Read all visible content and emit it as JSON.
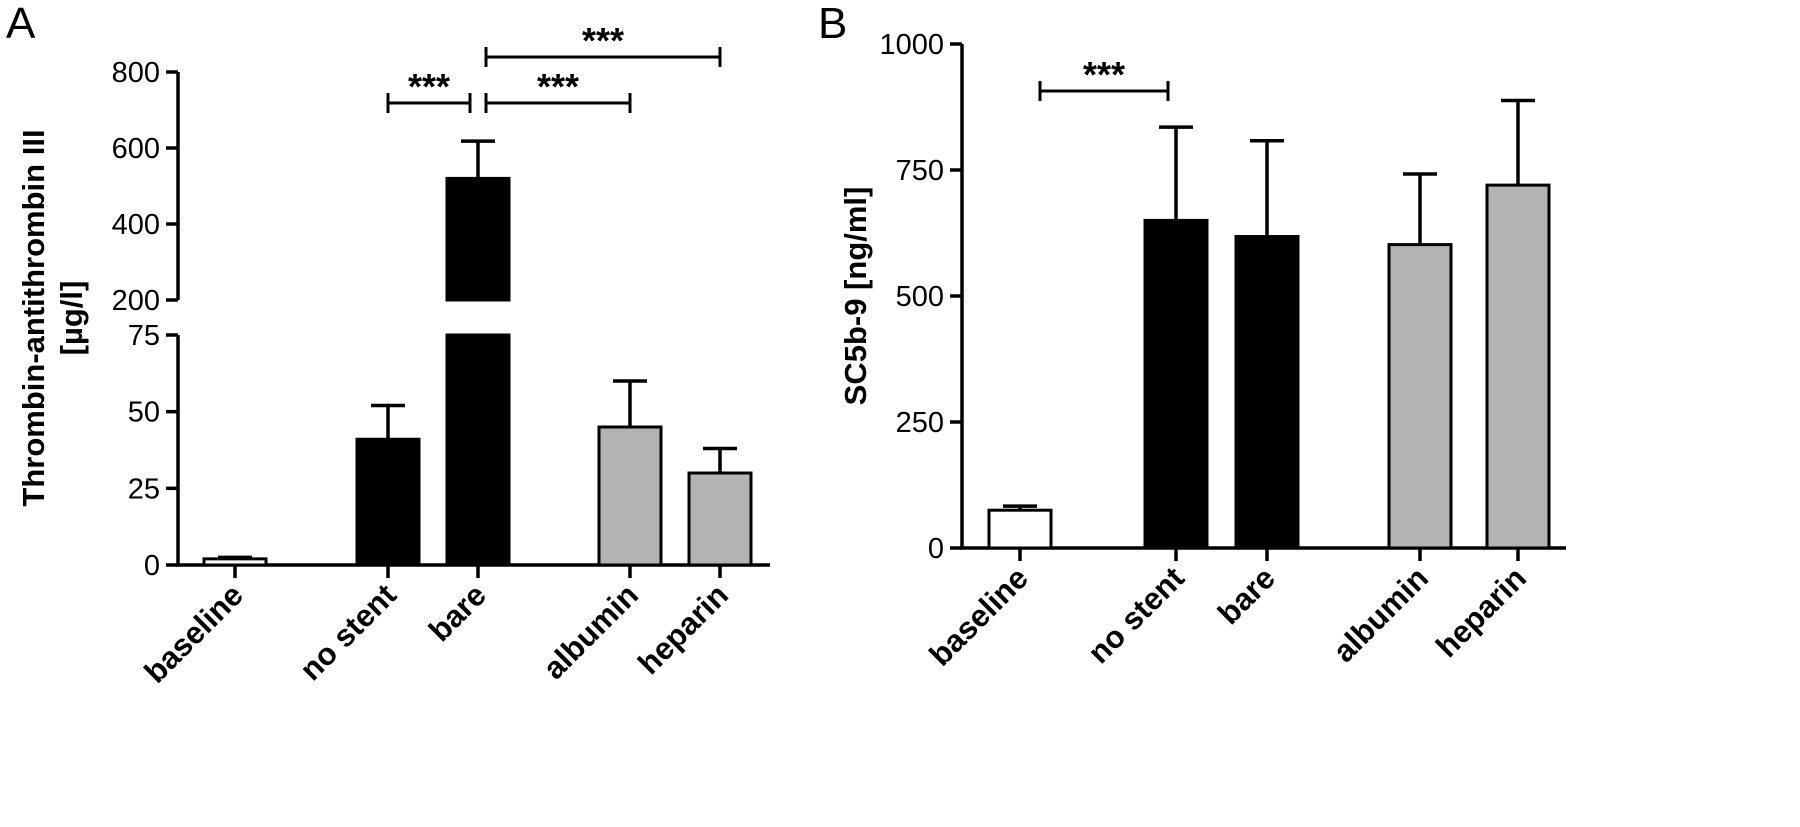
{
  "colors": {
    "black": "#000000",
    "gray": "#b3b3b3",
    "white": "#ffffff"
  },
  "chart_data": [
    {
      "type": "bar",
      "panel": "A",
      "ylabel_lines": [
        "Thrombin-antithrombin III",
        "[µg/l]"
      ],
      "categories": [
        "baseline",
        "no stent",
        "bare",
        "albumin",
        "heparin"
      ],
      "fills": [
        "white",
        "black",
        "black",
        "gray",
        "gray"
      ],
      "values": [
        2,
        41,
        520,
        45,
        30
      ],
      "errors": [
        0.5,
        11,
        98,
        15,
        8
      ],
      "broken_axis": {
        "lower_range": [
          0,
          75
        ],
        "upper_range": [
          200,
          800
        ]
      },
      "yticks_lower": [
        "0",
        "25",
        "50",
        "75"
      ],
      "yticks_upper": [
        "200",
        "400",
        "600",
        "800"
      ],
      "significance": [
        {
          "from": "no stent",
          "to": "bare",
          "label": "***"
        },
        {
          "from": "bare",
          "to": "albumin",
          "label": "***"
        },
        {
          "from": "bare",
          "to": "heparin",
          "label": "***"
        }
      ]
    },
    {
      "type": "bar",
      "panel": "B",
      "ylabel": "SC5b-9 [ng/ml]",
      "categories": [
        "baseline",
        "no stent",
        "bare",
        "albumin",
        "heparin"
      ],
      "fills": [
        "white",
        "black",
        "black",
        "gray",
        "gray"
      ],
      "values": [
        75,
        650,
        618,
        602,
        720
      ],
      "errors": [
        8,
        185,
        190,
        140,
        168
      ],
      "ylim": [
        0,
        1000
      ],
      "yticks": [
        "0",
        "250",
        "500",
        "750",
        "1000"
      ],
      "significance": [
        {
          "from": "baseline",
          "to": "no stent",
          "label": "***"
        }
      ]
    }
  ]
}
